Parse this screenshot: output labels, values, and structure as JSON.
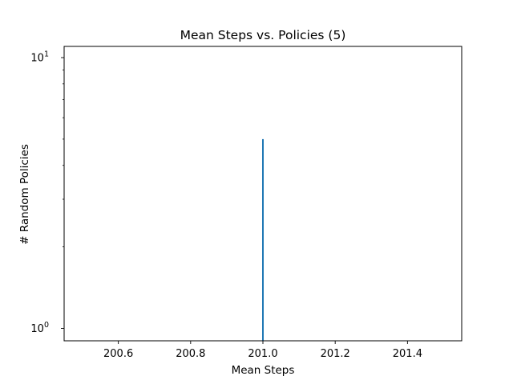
{
  "chart_data": {
    "type": "histogram",
    "title": "Mean Steps vs. Policies (5)",
    "xlabel": "Mean Steps",
    "ylabel": "# Random Policies",
    "xlim": [
      200.45,
      201.55
    ],
    "ylim": [
      0.9,
      11
    ],
    "yscale": "log",
    "x_ticks": [
      200.6,
      200.8,
      201.0,
      201.2,
      201.4
    ],
    "x_tick_labels": [
      "200.6",
      "200.8",
      "201.0",
      "201.2",
      "201.4"
    ],
    "y_ticks": [
      1,
      10
    ],
    "y_tick_labels": [
      {
        "base": "10",
        "exp": "0"
      },
      {
        "base": "10",
        "exp": "1"
      }
    ],
    "grid": false,
    "legend": "none",
    "series": [
      {
        "color": "#1f77b4",
        "bars": [
          {
            "x": 201.0,
            "value": 5
          }
        ]
      }
    ]
  }
}
